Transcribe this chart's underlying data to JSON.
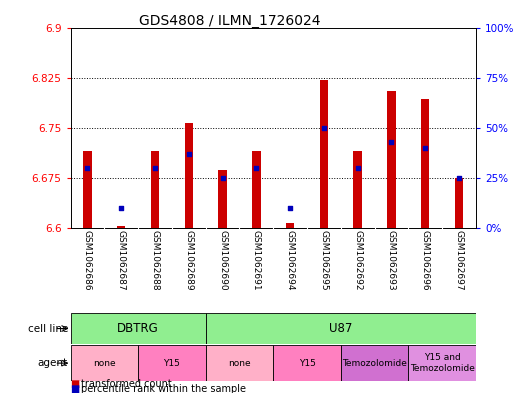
{
  "title": "GDS4808 / ILMN_1726024",
  "samples": [
    "GSM1062686",
    "GSM1062687",
    "GSM1062688",
    "GSM1062689",
    "GSM1062690",
    "GSM1062691",
    "GSM1062694",
    "GSM1062695",
    "GSM1062692",
    "GSM1062693",
    "GSM1062696",
    "GSM1062697"
  ],
  "red_values": [
    6.715,
    6.603,
    6.715,
    6.757,
    6.687,
    6.715,
    6.607,
    6.822,
    6.715,
    6.805,
    6.793,
    6.675
  ],
  "blue_percentiles": [
    30,
    10,
    30,
    37,
    25,
    30,
    10,
    50,
    30,
    43,
    40,
    25
  ],
  "red_base": 6.6,
  "ylim_left": [
    6.6,
    6.9
  ],
  "ylim_right": [
    0,
    100
  ],
  "yticks_left": [
    6.6,
    6.675,
    6.75,
    6.825,
    6.9
  ],
  "yticks_right": [
    0,
    25,
    50,
    75,
    100
  ],
  "ytick_labels_left": [
    "6.6",
    "6.675",
    "6.75",
    "6.825",
    "6.9"
  ],
  "ytick_labels_right": [
    "0%",
    "25%",
    "50%",
    "75%",
    "100%"
  ],
  "cell_line_groups": [
    {
      "label": "DBTRG",
      "start": 0,
      "end": 4,
      "color": "#90EE90"
    },
    {
      "label": "U87",
      "start": 4,
      "end": 12,
      "color": "#90EE90"
    }
  ],
  "agent_groups": [
    {
      "label": "none",
      "start": 0,
      "end": 2,
      "color": "#FFB0C8"
    },
    {
      "label": "Y15",
      "start": 2,
      "end": 4,
      "color": "#FF80C0"
    },
    {
      "label": "none",
      "start": 4,
      "end": 6,
      "color": "#FFB0C8"
    },
    {
      "label": "Y15",
      "start": 6,
      "end": 8,
      "color": "#FF80C0"
    },
    {
      "label": "Temozolomide",
      "start": 8,
      "end": 10,
      "color": "#D070D0"
    },
    {
      "label": "Y15 and\nTemozolomide",
      "start": 10,
      "end": 12,
      "color": "#E090E0"
    }
  ],
  "bar_width": 0.25,
  "red_color": "#CC0000",
  "blue_color": "#0000BB",
  "legend_red": "transformed count",
  "legend_blue": "percentile rank within the sample",
  "grid_style": "dotted"
}
